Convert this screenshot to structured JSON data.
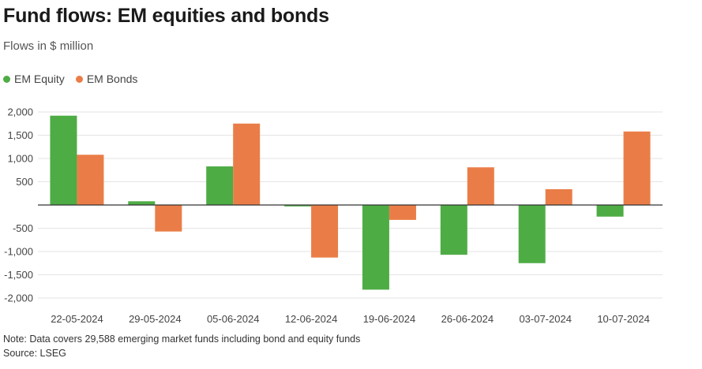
{
  "header": {
    "title": "Fund flows: EM equities and bonds",
    "subtitle": "Flows in $ million"
  },
  "footer": {
    "note": "Note: Data covers 29,588 emerging market funds including bond and equity funds",
    "source": "Source: LSEG"
  },
  "colors": {
    "equity": "#4eac45",
    "bonds": "#ea7d47",
    "grid": "#e3e3e3",
    "zero": "#333333",
    "tick": "#444444"
  },
  "chart_data": {
    "type": "bar",
    "title": "Fund flows: EM equities and bonds",
    "subtitle": "Flows in $ million",
    "xlabel": "",
    "ylabel": "",
    "ylim": [
      -2000,
      2000
    ],
    "yticks": [
      2000,
      1500,
      1000,
      500,
      0,
      -500,
      -1000,
      -1500,
      -2000
    ],
    "ytick_labels": [
      "2,000",
      "1,500",
      "1,000",
      "500",
      "",
      "-500",
      "-1,000",
      "-1,500",
      "-2,000"
    ],
    "grid": true,
    "legend_position": "top-left",
    "categories": [
      "22-05-2024",
      "29-05-2024",
      "05-06-2024",
      "12-06-2024",
      "19-06-2024",
      "26-06-2024",
      "03-07-2024",
      "10-07-2024"
    ],
    "series": [
      {
        "name": "EM Equity",
        "color_key": "equity",
        "values": [
          1920,
          80,
          830,
          -30,
          -1820,
          -1070,
          -1250,
          -250
        ]
      },
      {
        "name": "EM Bonds",
        "color_key": "bonds",
        "values": [
          1080,
          -570,
          1750,
          -1130,
          -320,
          810,
          340,
          1580
        ]
      }
    ]
  }
}
